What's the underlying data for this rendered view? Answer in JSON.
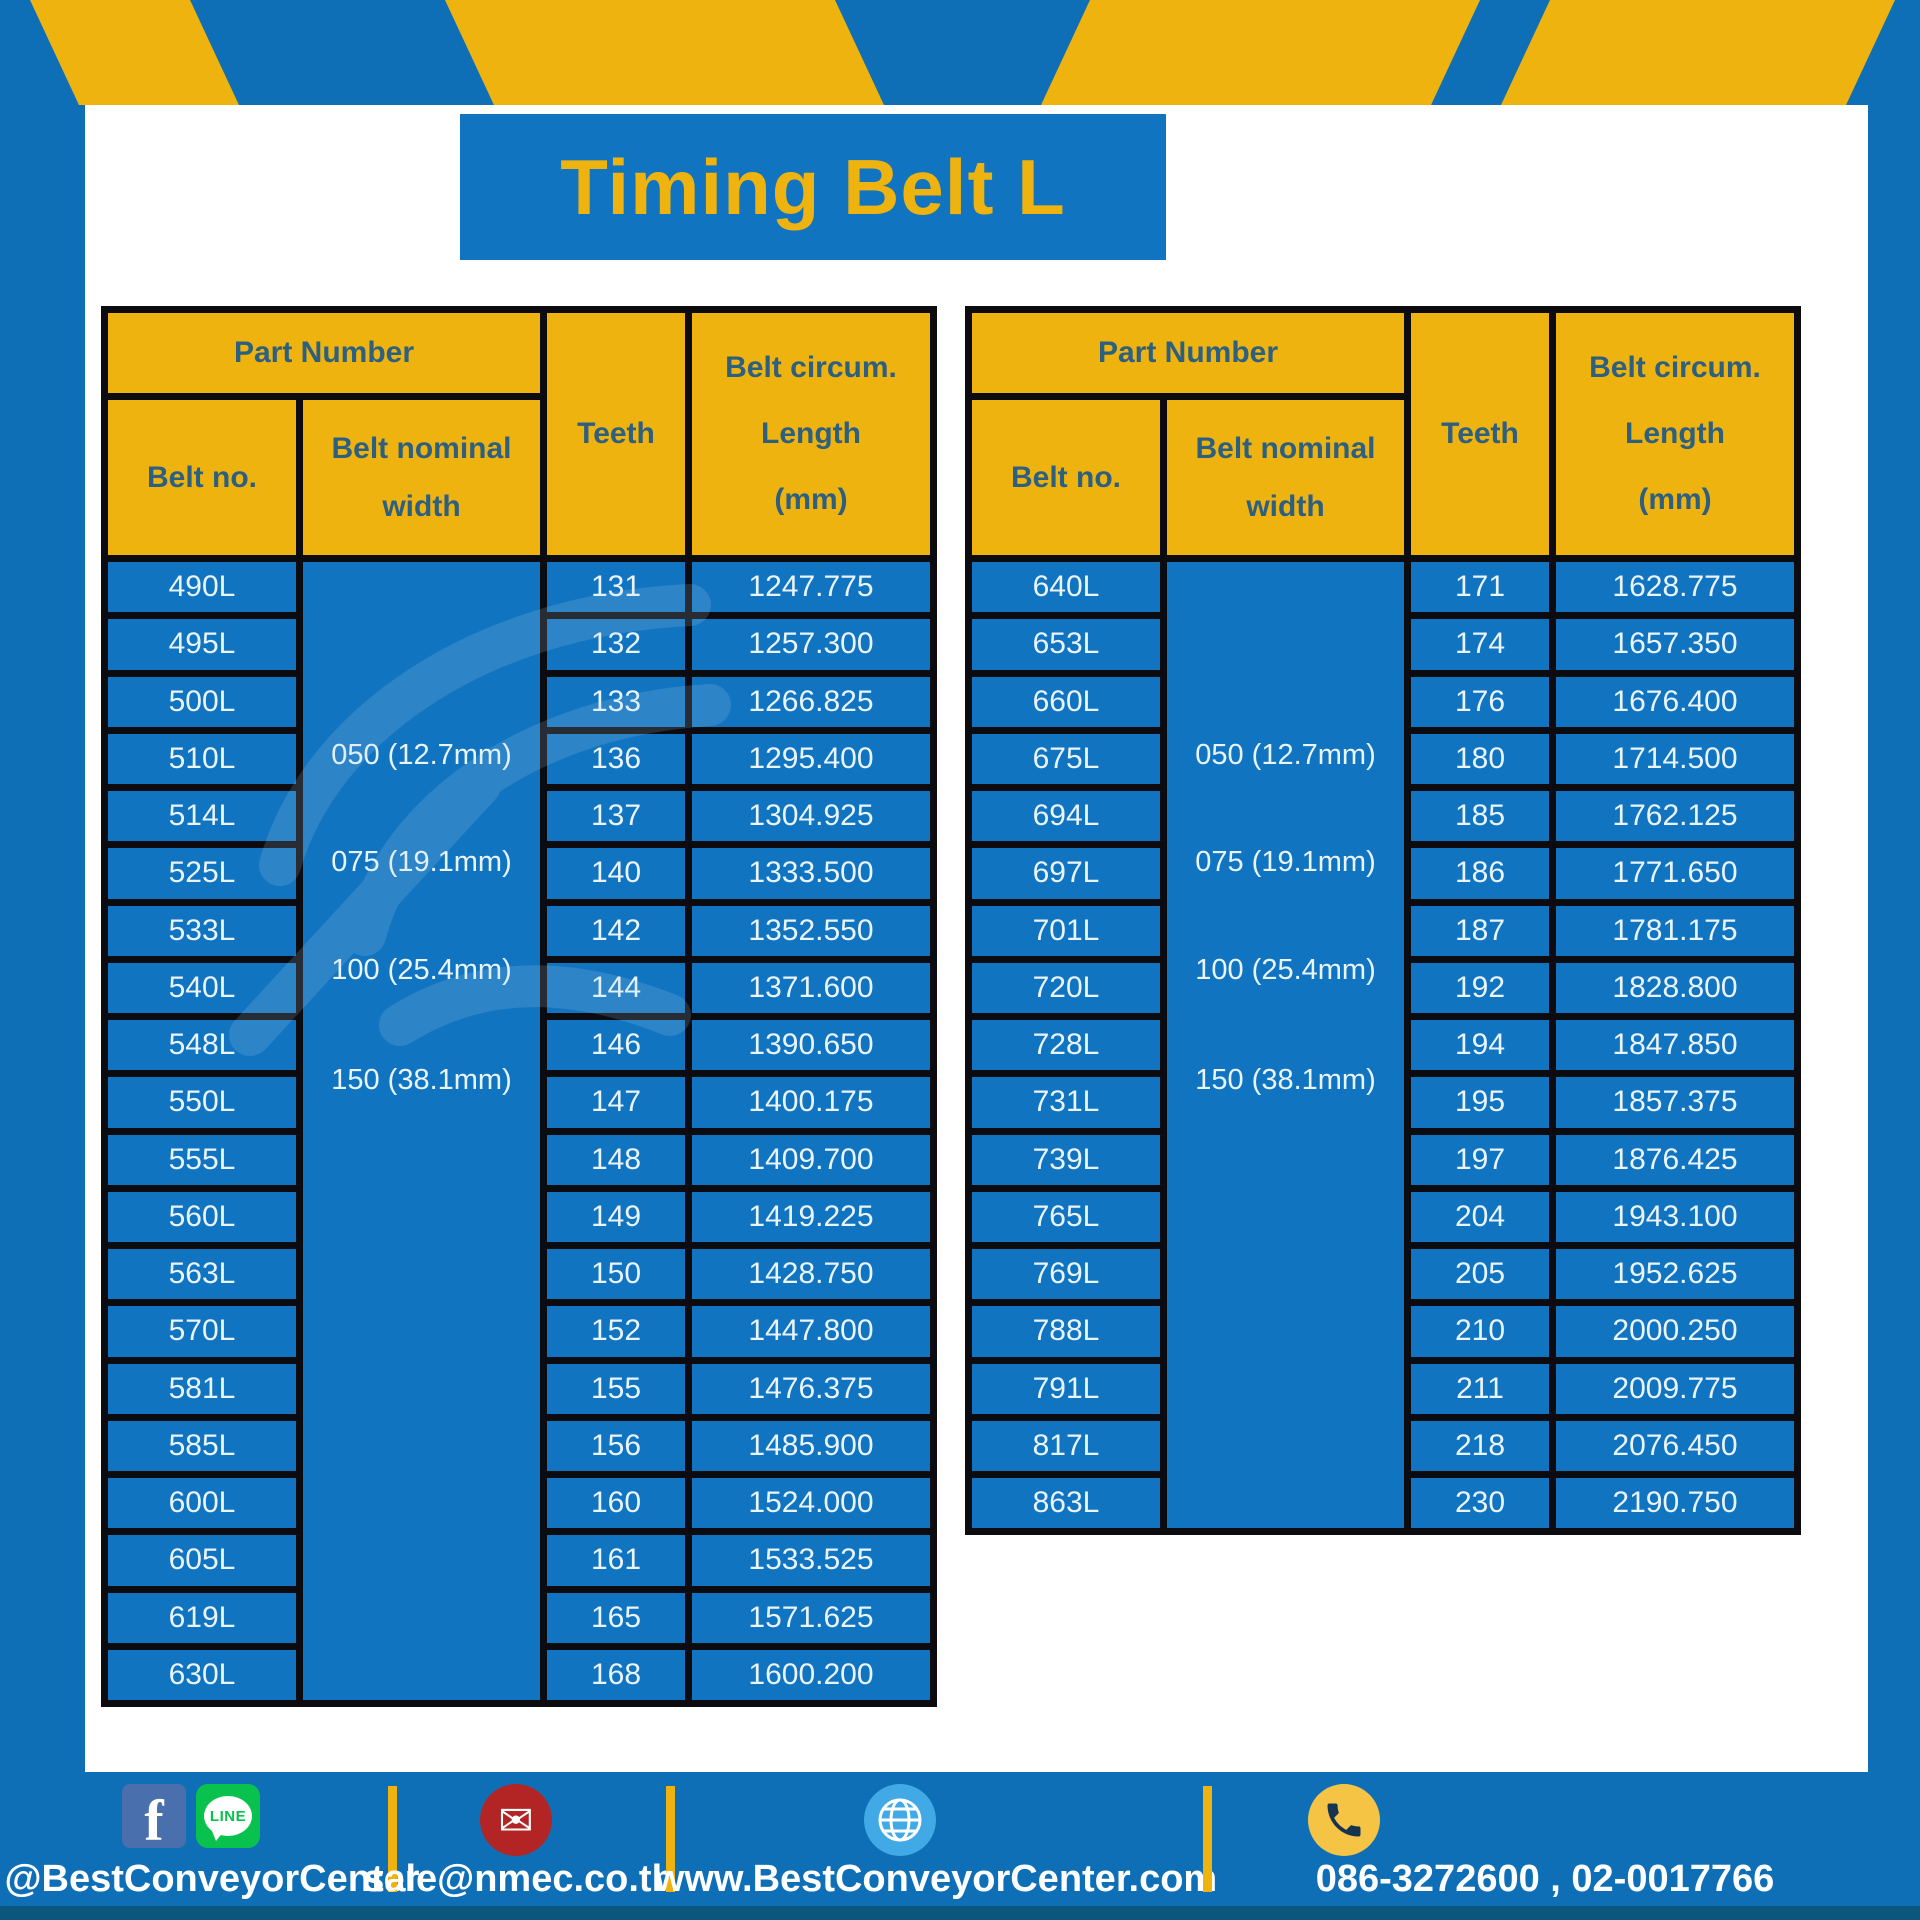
{
  "title": "Timing Belt L",
  "colors": {
    "blue": "#0e6fb6",
    "cellblue": "#1174c0",
    "yellow": "#efb310",
    "ink": "#2d5f80",
    "celltext": "#e9f4fd",
    "black": "#0b0b10"
  },
  "table_header": {
    "part_number": "Part Number",
    "belt_no": "Belt no.",
    "belt_nominal_line1": "Belt nominal",
    "belt_nominal_line2": "width",
    "teeth": "Teeth",
    "circum_line1": "Belt circum.",
    "circum_line2": "Length",
    "circum_line3": "(mm)"
  },
  "width_options": [
    "050 (12.7mm)",
    "075 (19.1mm)",
    "100 (25.4mm)",
    "150 (38.1mm)"
  ],
  "tables": [
    {
      "rows": [
        [
          "490L",
          "131",
          "1247.775"
        ],
        [
          "495L",
          "132",
          "1257.300"
        ],
        [
          "500L",
          "133",
          "1266.825"
        ],
        [
          "510L",
          "136",
          "1295.400"
        ],
        [
          "514L",
          "137",
          "1304.925"
        ],
        [
          "525L",
          "140",
          "1333.500"
        ],
        [
          "533L",
          "142",
          "1352.550"
        ],
        [
          "540L",
          "144",
          "1371.600"
        ],
        [
          "548L",
          "146",
          "1390.650"
        ],
        [
          "550L",
          "147",
          "1400.175"
        ],
        [
          "555L",
          "148",
          "1409.700"
        ],
        [
          "560L",
          "149",
          "1419.225"
        ],
        [
          "563L",
          "150",
          "1428.750"
        ],
        [
          "570L",
          "152",
          "1447.800"
        ],
        [
          "581L",
          "155",
          "1476.375"
        ],
        [
          "585L",
          "156",
          "1485.900"
        ],
        [
          "600L",
          "160",
          "1524.000"
        ],
        [
          "605L",
          "161",
          "1533.525"
        ],
        [
          "619L",
          "165",
          "1571.625"
        ],
        [
          "630L",
          "168",
          "1600.200"
        ]
      ]
    },
    {
      "rows": [
        [
          "640L",
          "171",
          "1628.775"
        ],
        [
          "653L",
          "174",
          "1657.350"
        ],
        [
          "660L",
          "176",
          "1676.400"
        ],
        [
          "675L",
          "180",
          "1714.500"
        ],
        [
          "694L",
          "185",
          "1762.125"
        ],
        [
          "697L",
          "186",
          "1771.650"
        ],
        [
          "701L",
          "187",
          "1781.175"
        ],
        [
          "720L",
          "192",
          "1828.800"
        ],
        [
          "728L",
          "194",
          "1847.850"
        ],
        [
          "731L",
          "195",
          "1857.375"
        ],
        [
          "739L",
          "197",
          "1876.425"
        ],
        [
          "765L",
          "204",
          "1943.100"
        ],
        [
          "769L",
          "205",
          "1952.625"
        ],
        [
          "788L",
          "210",
          "2000.250"
        ],
        [
          "791L",
          "211",
          "2009.775"
        ],
        [
          "817L",
          "218",
          "2076.450"
        ],
        [
          "863L",
          "230",
          "2190.750"
        ]
      ]
    }
  ],
  "footer": {
    "social_handle": "@BestConveyorCenter",
    "line_label": "LINE",
    "facebook_letter": "f",
    "email": "sale@nmec.co.th",
    "website": "www.BestConveyorCenter.com",
    "phone": "086-3272600 , 02-0017766"
  }
}
